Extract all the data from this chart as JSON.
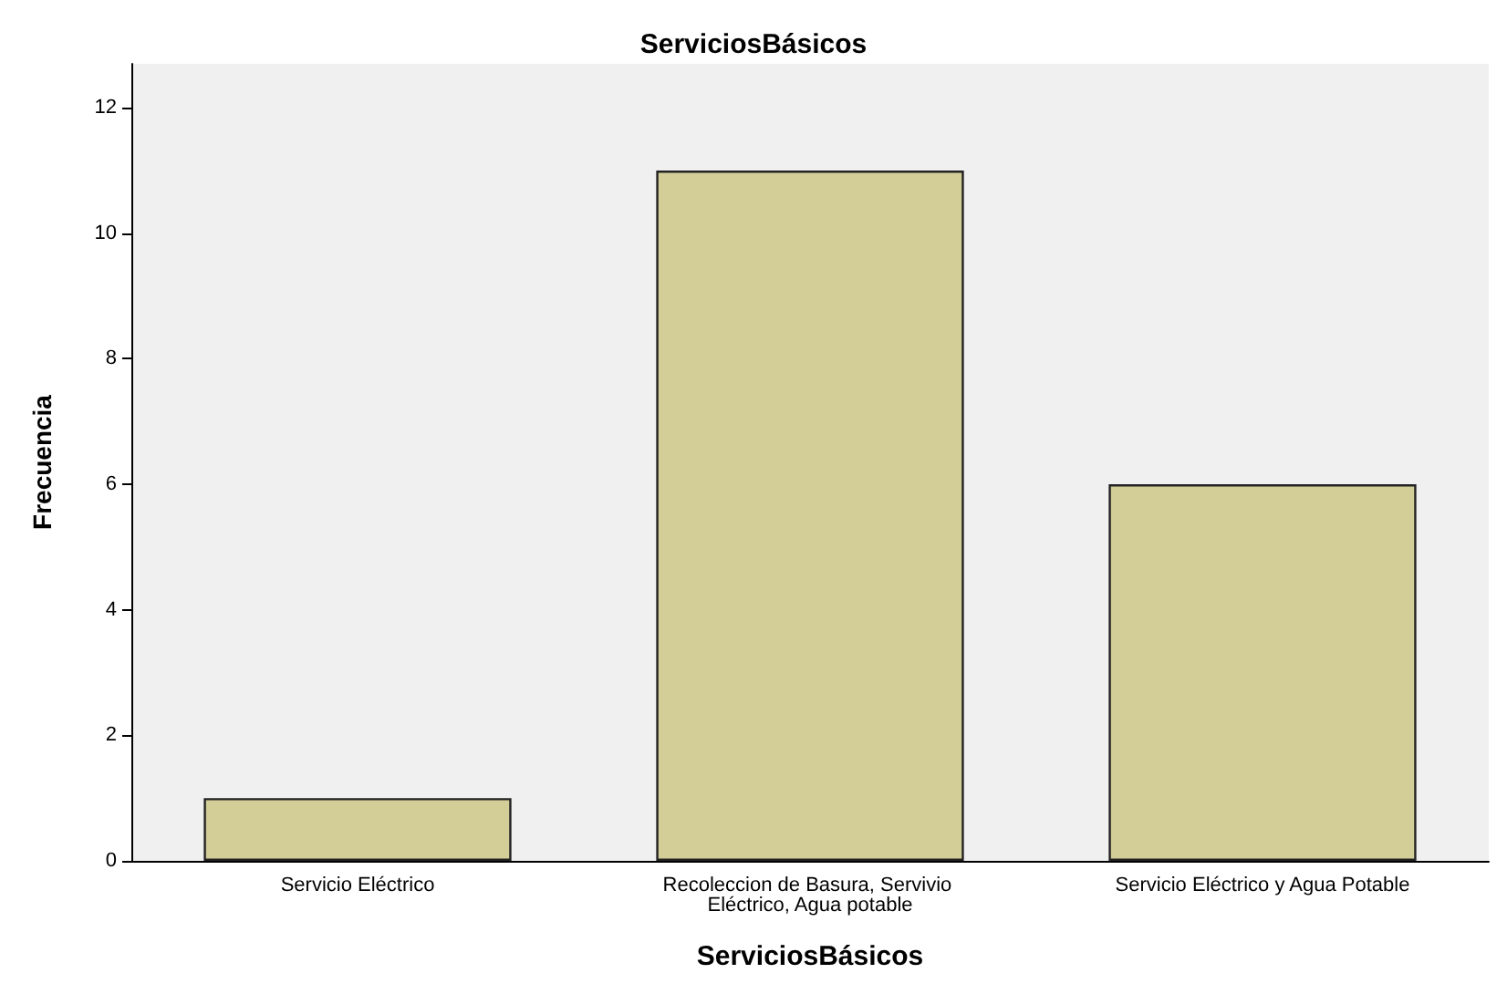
{
  "chart_data": {
    "type": "bar",
    "title": "ServiciosBásicos",
    "xlabel": "ServiciosBásicos",
    "ylabel": "Frecuencia",
    "categories": [
      "Servicio Eléctrico",
      "Recoleccion de Basura, Servivio Eléctrico, Agua potable",
      "Servicio Eléctrico y Agua Potable"
    ],
    "values": [
      1,
      11,
      6
    ],
    "color": "#d3ce97",
    "ylim": [
      0,
      12.7
    ],
    "yticks": [
      0,
      2,
      4,
      6,
      8,
      10,
      12
    ],
    "grid": false
  }
}
